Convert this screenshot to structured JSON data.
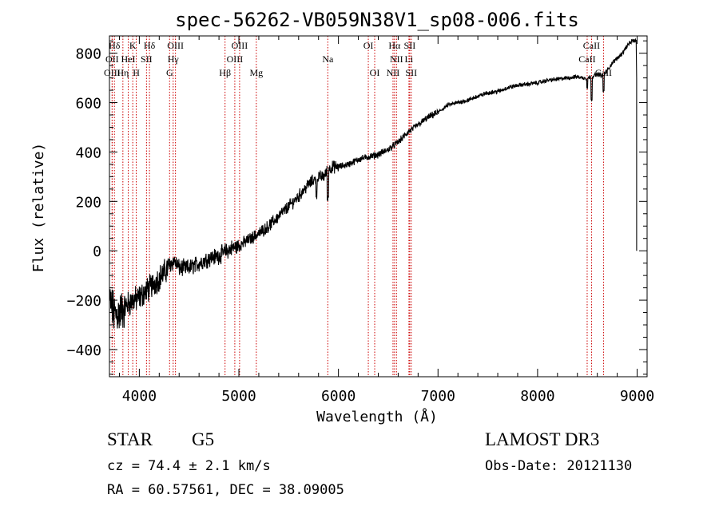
{
  "chart_data": {
    "type": "line",
    "title": "spec-56262-VB059N38V1_sp08-006.fits",
    "xlabel": "Wavelength (Å)",
    "ylabel": "Flux (relative)",
    "xlim": [
      3700,
      9100
    ],
    "ylim": [
      -510,
      870
    ],
    "x_ticks": [
      4000,
      5000,
      6000,
      7000,
      8000,
      9000
    ],
    "y_ticks": [
      -400,
      -200,
      0,
      200,
      400,
      600,
      800
    ],
    "series": [
      {
        "name": "flux",
        "x": [
          3700,
          3750,
          3800,
          3850,
          3900,
          3950,
          4000,
          4050,
          4100,
          4150,
          4200,
          4250,
          4300,
          4350,
          4400,
          4500,
          4600,
          4700,
          4800,
          4900,
          5000,
          5100,
          5200,
          5300,
          5400,
          5500,
          5600,
          5700,
          5800,
          5850,
          5900,
          5950,
          6000,
          6100,
          6200,
          6300,
          6400,
          6500,
          6600,
          6700,
          6800,
          6900,
          7000,
          7100,
          7200,
          7300,
          7400,
          7500,
          7600,
          7700,
          7800,
          7900,
          8000,
          8100,
          8200,
          8300,
          8400,
          8450,
          8500,
          8550,
          8600,
          8650,
          8700,
          8750,
          8800,
          8850,
          8900,
          8950,
          8990
        ],
        "y": [
          -200,
          -260,
          -250,
          -230,
          -210,
          -200,
          -190,
          -170,
          -150,
          -130,
          -110,
          -90,
          -60,
          -40,
          -70,
          -70,
          -50,
          -30,
          -20,
          5,
          20,
          45,
          70,
          100,
          140,
          180,
          220,
          270,
          300,
          300,
          330,
          340,
          340,
          350,
          370,
          380,
          390,
          410,
          440,
          480,
          510,
          540,
          560,
          590,
          600,
          610,
          625,
          640,
          645,
          660,
          670,
          675,
          680,
          690,
          695,
          700,
          705,
          700,
          700,
          705,
          715,
          710,
          730,
          760,
          780,
          800,
          830,
          850,
          850
        ]
      }
    ],
    "spectral_lines": [
      {
        "name": "Hδ",
        "wavelength": 3750,
        "row": 0
      },
      {
        "name": "K",
        "wavelength": 3934,
        "row": 0
      },
      {
        "name": "Hδ",
        "wavelength": 4102,
        "row": 0
      },
      {
        "name": "OIII",
        "wavelength": 4363,
        "row": 0
      },
      {
        "name": "OIII",
        "wavelength": 5007,
        "row": 0
      },
      {
        "name": "OI",
        "wavelength": 6300,
        "row": 0
      },
      {
        "name": "Hα",
        "wavelength": 6563,
        "row": 0
      },
      {
        "name": "SII",
        "wavelength": 6716,
        "row": 0
      },
      {
        "name": "CaII",
        "wavelength": 8542,
        "row": 0
      },
      {
        "name": "OII",
        "wavelength": 3727,
        "row": 1
      },
      {
        "name": "HeI",
        "wavelength": 3889,
        "row": 1
      },
      {
        "name": "SII",
        "wavelength": 4072,
        "row": 1
      },
      {
        "name": "Hγ",
        "wavelength": 4340,
        "row": 1
      },
      {
        "name": "OIII",
        "wavelength": 4959,
        "row": 1
      },
      {
        "name": "Na",
        "wavelength": 5893,
        "row": 1
      },
      {
        "name": "NII",
        "wavelength": 6583,
        "row": 1
      },
      {
        "name": "Li",
        "wavelength": 6708,
        "row": 1
      },
      {
        "name": "CaII",
        "wavelength": 8498,
        "row": 1
      },
      {
        "name": "OIII",
        "wavelength": 3727,
        "row": 2
      },
      {
        "name": "Hη",
        "wavelength": 3835,
        "row": 2
      },
      {
        "name": "H",
        "wavelength": 3969,
        "row": 2
      },
      {
        "name": "G",
        "wavelength": 4304,
        "row": 2
      },
      {
        "name": "Hβ",
        "wavelength": 4861,
        "row": 2
      },
      {
        "name": "Mg",
        "wavelength": 5175,
        "row": 2
      },
      {
        "name": "OI",
        "wavelength": 6364,
        "row": 2
      },
      {
        "name": "NII",
        "wavelength": 6548,
        "row": 2
      },
      {
        "name": "SII",
        "wavelength": 6731,
        "row": 2
      },
      {
        "name": "CaII",
        "wavelength": 8662,
        "row": 2
      }
    ],
    "line_color": "#000000",
    "marker_color": "#cc0000"
  },
  "info": {
    "object_class": "STAR",
    "subclass": "G5",
    "survey": "LAMOST DR3",
    "redshift": "cz = 74.4 ± 2.1 km/s",
    "obs_date": "Obs-Date: 20121130",
    "coords": "RA =  60.57561, DEC =  38.09005"
  }
}
